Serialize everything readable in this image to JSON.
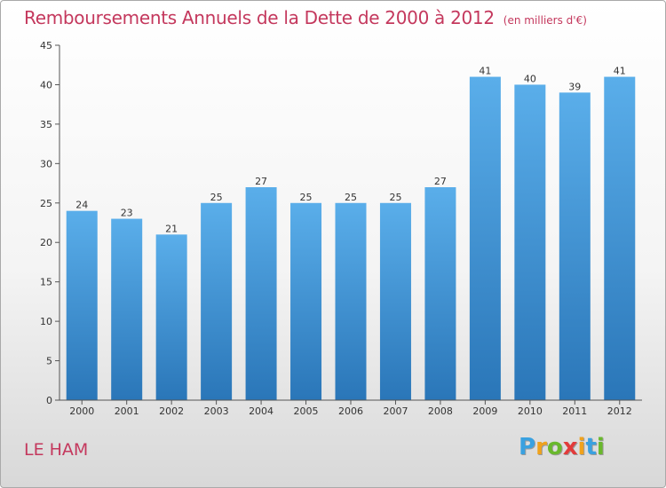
{
  "chart_data": {
    "type": "bar",
    "title": "Remboursements Annuels de la Dette de 2000 à 2012",
    "unit": "(en milliers d'€)",
    "categories": [
      "2000",
      "2001",
      "2002",
      "2003",
      "2004",
      "2005",
      "2006",
      "2007",
      "2008",
      "2009",
      "2010",
      "2011",
      "2012"
    ],
    "values": [
      24,
      23,
      21,
      25,
      27,
      25,
      25,
      25,
      27,
      41,
      40,
      39,
      41
    ],
    "ylim": [
      0,
      45
    ],
    "yticks": [
      0,
      5,
      10,
      15,
      20,
      25,
      30,
      35,
      40,
      45
    ],
    "grid": false,
    "bar_color": "#3f92d8"
  },
  "commune": "LE HAM",
  "logo": {
    "letters": [
      "P",
      "r",
      "o",
      "x",
      "i",
      "t",
      "i"
    ],
    "colors": [
      "#3aa1e0",
      "#f0a21c",
      "#69b82d",
      "#e23b3b",
      "#f0a21c",
      "#3aa1e0",
      "#69b82d"
    ]
  }
}
